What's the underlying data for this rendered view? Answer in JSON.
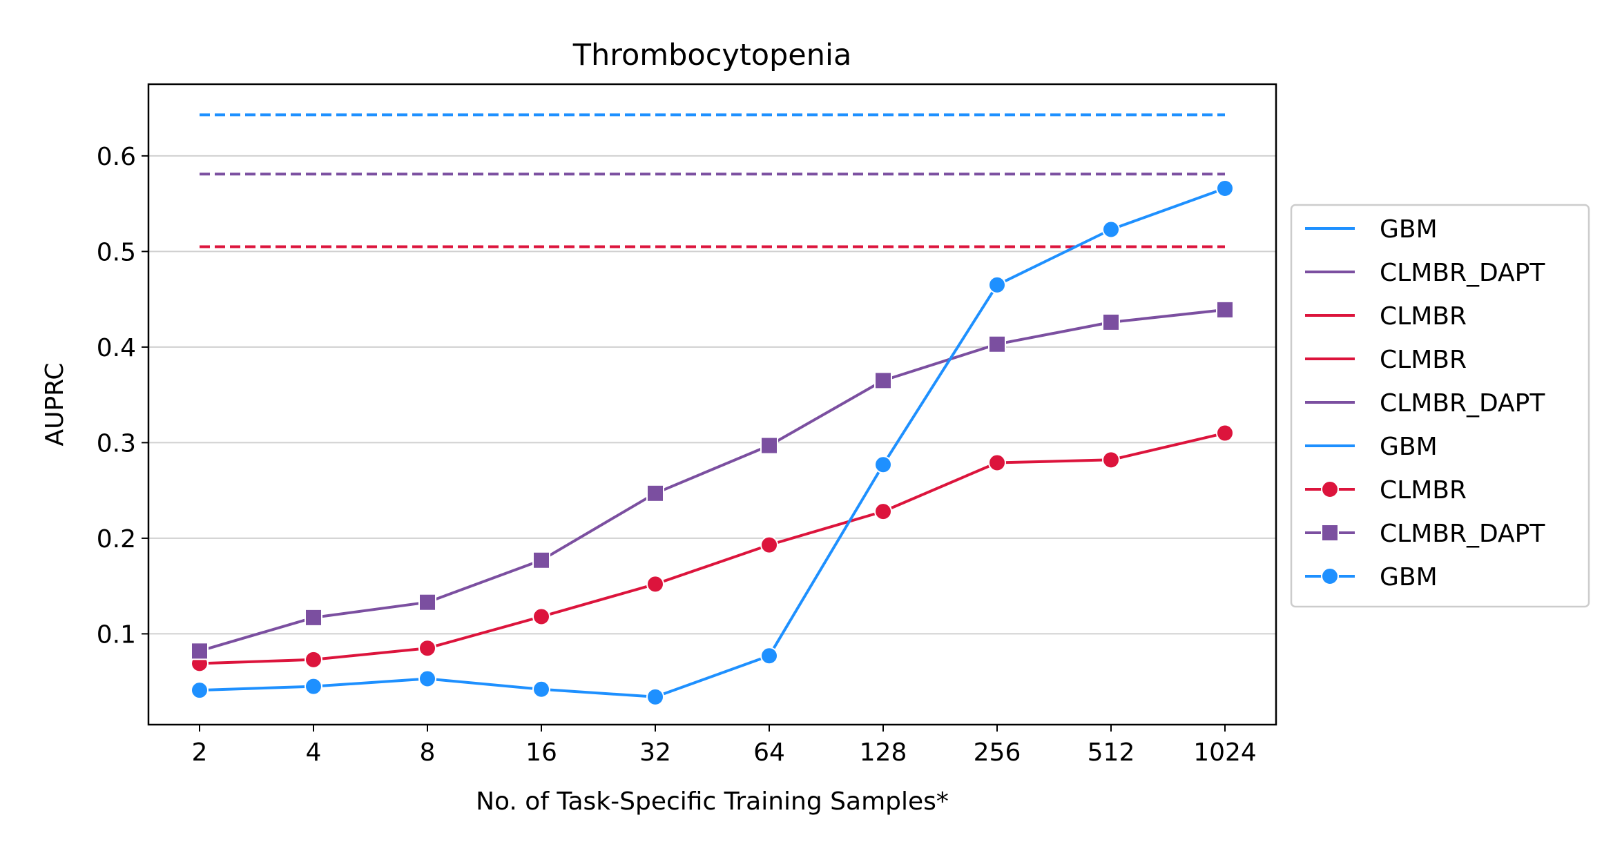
{
  "chart_data": {
    "type": "line",
    "title": "Thrombocytopenia",
    "xlabel": "No. of Task-Specific Training Samples*",
    "ylabel": "AUPRC",
    "x_scale": "log2",
    "categories": [
      "2",
      "4",
      "8",
      "16",
      "32",
      "64",
      "128",
      "256",
      "512",
      "1024"
    ],
    "x": [
      2,
      4,
      8,
      16,
      32,
      64,
      128,
      256,
      512,
      1024
    ],
    "ylim": [
      0.005,
      0.675
    ],
    "yticks": [
      0.1,
      0.2,
      0.3,
      0.4,
      0.5,
      0.6
    ],
    "ytick_labels": [
      "0.1",
      "0.2",
      "0.3",
      "0.4",
      "0.5",
      "0.6"
    ],
    "grid": "horizontal",
    "legend_position": "outside-right",
    "colors": {
      "GBM": "#1e90ff",
      "CLMBR": "#dc143c",
      "CLMBR_DAPT": "#7b4fa0"
    },
    "reference_lines": [
      {
        "name": "GBM",
        "value": 0.643,
        "style": "dashed",
        "color": "#1e90ff"
      },
      {
        "name": "CLMBR_DAPT",
        "value": 0.581,
        "style": "dashed",
        "color": "#7b4fa0"
      },
      {
        "name": "CLMBR",
        "value": 0.505,
        "style": "dashed",
        "color": "#dc143c"
      }
    ],
    "series": [
      {
        "name": "CLMBR",
        "marker": "circle",
        "color": "#dc143c",
        "values": [
          0.069,
          0.073,
          0.085,
          0.118,
          0.152,
          0.193,
          0.228,
          0.279,
          0.282,
          0.31
        ]
      },
      {
        "name": "CLMBR_DAPT",
        "marker": "square",
        "color": "#7b4fa0",
        "values": [
          0.082,
          0.117,
          0.133,
          0.177,
          0.247,
          0.297,
          0.365,
          0.403,
          0.426,
          0.439
        ]
      },
      {
        "name": "GBM",
        "marker": "circle",
        "color": "#1e90ff",
        "values": [
          0.041,
          0.045,
          0.053,
          0.042,
          0.034,
          0.077,
          0.277,
          0.465,
          0.523,
          0.566
        ]
      }
    ],
    "legend": [
      {
        "label": "GBM",
        "color": "#1e90ff",
        "marker": "none"
      },
      {
        "label": "CLMBR_DAPT",
        "color": "#7b4fa0",
        "marker": "none"
      },
      {
        "label": "CLMBR",
        "color": "#dc143c",
        "marker": "none"
      },
      {
        "label": "CLMBR",
        "color": "#dc143c",
        "marker": "none"
      },
      {
        "label": "CLMBR_DAPT",
        "color": "#7b4fa0",
        "marker": "none"
      },
      {
        "label": "GBM",
        "color": "#1e90ff",
        "marker": "none"
      },
      {
        "label": "CLMBR",
        "color": "#dc143c",
        "marker": "circle"
      },
      {
        "label": "CLMBR_DAPT",
        "color": "#7b4fa0",
        "marker": "square"
      },
      {
        "label": "GBM",
        "color": "#1e90ff",
        "marker": "circle"
      }
    ]
  }
}
